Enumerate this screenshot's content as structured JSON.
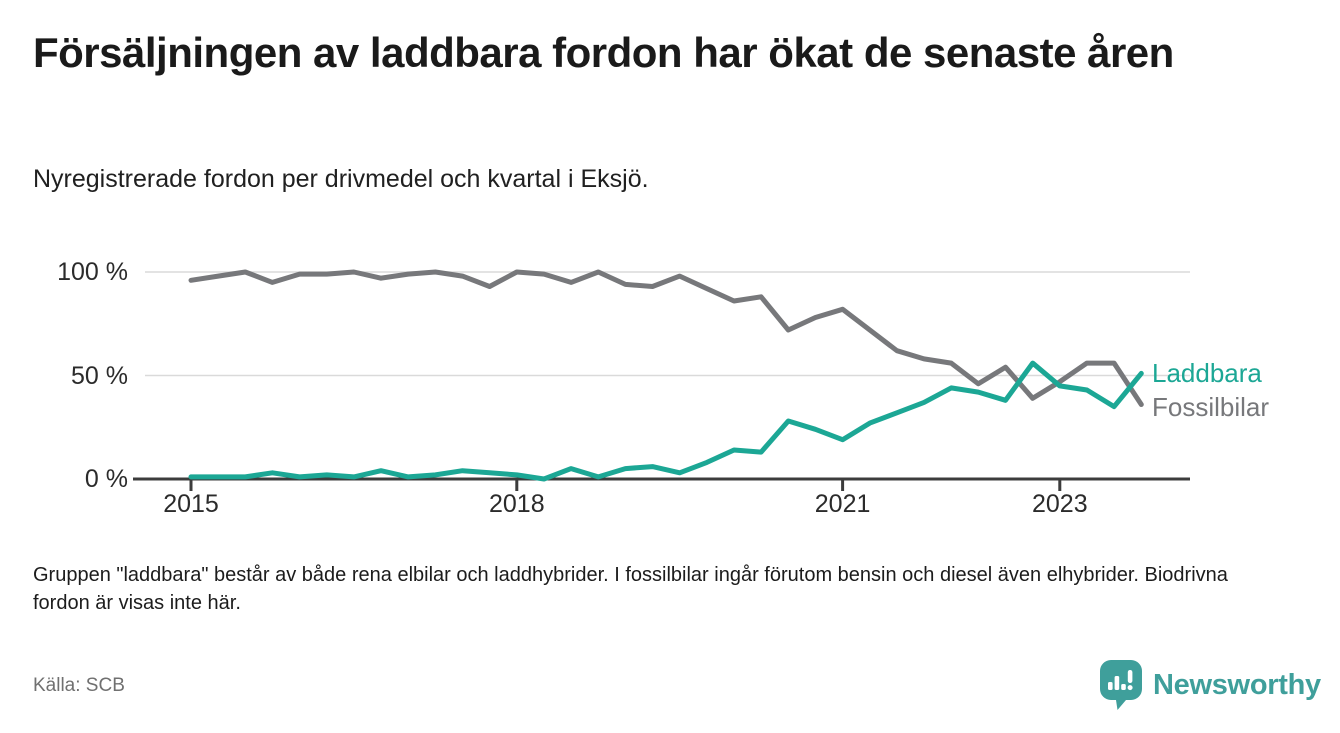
{
  "header": {
    "title": "Försäljningen av laddbara fordon har ökat de senaste åren",
    "subtitle": "Nyregistrerade fordon per drivmedel och kvartal i Eksjö."
  },
  "chart_data": {
    "type": "line",
    "title": "Nyregistrerade fordon per drivmedel och kvartal i Eksjö",
    "x_unit": "quarter",
    "x_start": "2015 Q1",
    "x_end": "2023 Q4",
    "ylim": [
      0,
      100
    ],
    "grid": "horizontal-only",
    "legend_position": "right-end-of-lines",
    "x_ticks": [
      {
        "label": "2015",
        "quarter_index": 0
      },
      {
        "label": "2018",
        "quarter_index": 12
      },
      {
        "label": "2021",
        "quarter_index": 24
      },
      {
        "label": "2023",
        "quarter_index": 32
      }
    ],
    "y_ticks": [
      {
        "label": "0 %",
        "value": 0
      },
      {
        "label": "50 %",
        "value": 50
      },
      {
        "label": "100 %",
        "value": 100
      }
    ],
    "series": [
      {
        "name": "Fossilbilar",
        "color": "#77787b",
        "values": [
          96,
          98,
          100,
          95,
          99,
          99,
          100,
          97,
          99,
          100,
          98,
          93,
          100,
          99,
          95,
          100,
          94,
          93,
          98,
          92,
          86,
          88,
          72,
          78,
          82,
          72,
          62,
          58,
          56,
          46,
          54,
          39,
          47,
          56,
          56,
          36
        ]
      },
      {
        "name": "Laddbara",
        "color": "#1ca795",
        "values": [
          1,
          1,
          1,
          3,
          1,
          2,
          1,
          4,
          1,
          2,
          4,
          3,
          2,
          0,
          5,
          1,
          5,
          6,
          3,
          8,
          14,
          13,
          28,
          24,
          19,
          27,
          32,
          37,
          44,
          42,
          38,
          56,
          45,
          43,
          35,
          51
        ]
      }
    ]
  },
  "footer": {
    "note": "Gruppen \"laddbara\" består av både rena elbilar och laddhybrider. I fossilbilar ingår förutom bensin och diesel även elhybrider. Biodrivna fordon är visas inte här.",
    "source": "Källa: SCB",
    "brand": {
      "name": "Newsworthy",
      "icon": "newsworthy-badge-icon",
      "color": "#3f9f9b"
    }
  }
}
